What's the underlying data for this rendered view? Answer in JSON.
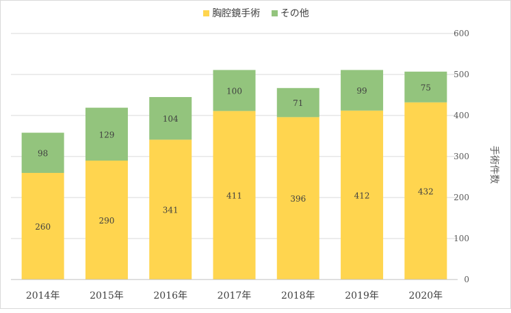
{
  "chart_data": {
    "type": "bar",
    "stacked": true,
    "categories": [
      "2014年",
      "2015年",
      "2016年",
      "2017年",
      "2018年",
      "2019年",
      "2020年"
    ],
    "series": [
      {
        "name": "胸腔鏡手術",
        "values": [
          260,
          290,
          341,
          411,
          396,
          412,
          432
        ],
        "color": "#ffd54f"
      },
      {
        "name": "その他",
        "values": [
          98,
          129,
          104,
          100,
          71,
          99,
          75
        ],
        "color": "#93c47d"
      }
    ],
    "ylabel": "手術件数",
    "ylim": [
      0,
      600
    ],
    "yticks": [
      0,
      100,
      200,
      300,
      400,
      500,
      600
    ],
    "y_axis_side": "right",
    "grid": true,
    "legend_position": "top"
  }
}
